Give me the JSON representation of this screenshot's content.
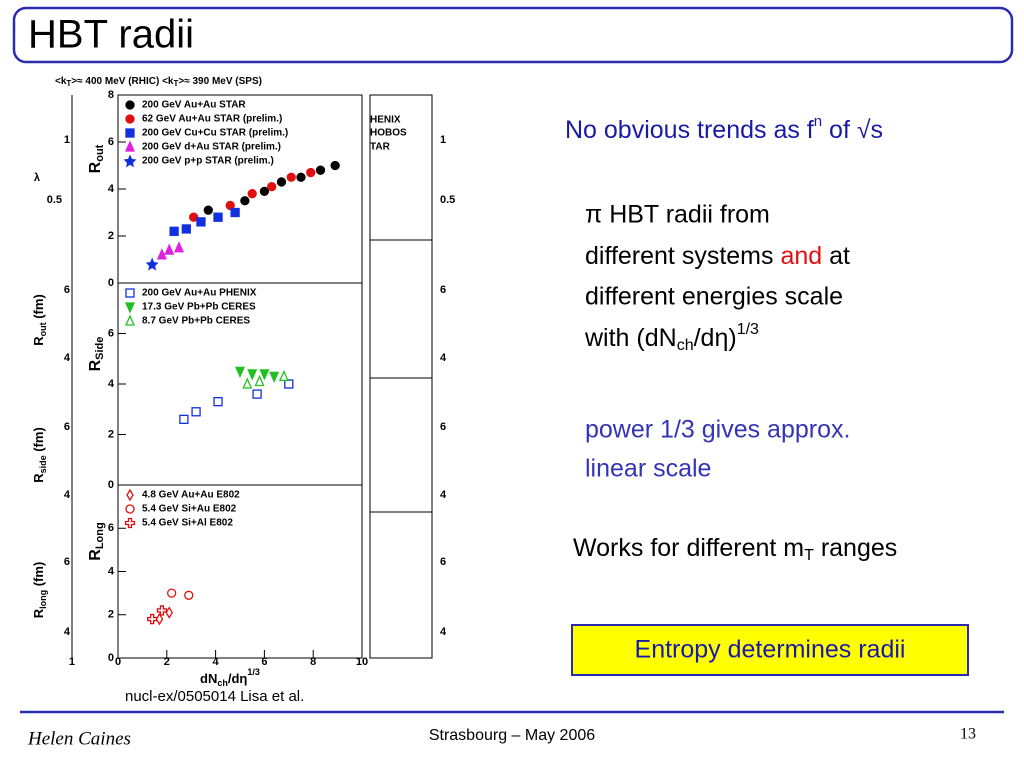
{
  "header": {
    "title": "HBT radii"
  },
  "figure_caption": {
    "a": "<k",
    "a_sub": "T",
    "b": ">≈ 400 MeV (RHIC)     <k",
    "b_sub": "T",
    "c": ">≈ 390 MeV (SPS)"
  },
  "x_axis_label": {
    "a": "dN",
    "sub": "ch",
    "b": "/dη",
    "sup": "1/3"
  },
  "reference": "nucl-ex/0505014 Lisa et al.",
  "left_axis_texts": [
    "1",
    "λ",
    "0.5",
    "6",
    "R",
    "4",
    "6",
    "R",
    "4",
    "6",
    "R",
    "4",
    "1"
  ],
  "left_axis_subs": [
    "out",
    "side",
    "long"
  ],
  "left_axis_units": " (fm)",
  "right_axis_texts": [
    "HENIX",
    "HOBOS",
    "TAR",
    "1",
    "0.5",
    "6",
    "4",
    "6",
    "4",
    "6",
    "4"
  ],
  "chart_data": [
    {
      "type": "scatter",
      "ylabel": "R",
      "ylabel_sub": "out",
      "xlim": [
        0,
        10
      ],
      "ylim": [
        0,
        8
      ],
      "yticks": [
        0,
        2,
        4,
        6,
        8
      ],
      "series": [
        {
          "name": "200 GeV Au+Au STAR",
          "color": "#000000",
          "marker": "circle",
          "filled": true,
          "x": [
            3.7,
            5.2,
            6.0,
            6.7,
            7.5,
            8.3,
            8.9
          ],
          "values": [
            3.1,
            3.5,
            3.9,
            4.3,
            4.5,
            4.8,
            5.0
          ]
        },
        {
          "name": " 62 GeV Au+Au STAR (prelim.)",
          "color": "#e01010",
          "marker": "circle",
          "filled": true,
          "x": [
            3.1,
            4.6,
            5.5,
            6.3,
            7.1,
            7.9
          ],
          "values": [
            2.8,
            3.3,
            3.8,
            4.1,
            4.5,
            4.7
          ]
        },
        {
          "name": "200 GeV Cu+Cu STAR (prelim.)",
          "color": "#1030e0",
          "marker": "square",
          "filled": true,
          "x": [
            2.3,
            2.8,
            3.4,
            4.1,
            4.8
          ],
          "values": [
            2.2,
            2.3,
            2.6,
            2.8,
            3.0
          ]
        },
        {
          "name": "200 GeV d+Au STAR (prelim.)",
          "color": "#e020e0",
          "marker": "triangle",
          "filled": true,
          "x": [
            1.8,
            2.1,
            2.5
          ],
          "values": [
            1.2,
            1.4,
            1.5
          ]
        },
        {
          "name": "200 GeV p+p STAR (prelim.)",
          "color": "#1030e0",
          "marker": "star",
          "filled": true,
          "x": [
            1.4
          ],
          "values": [
            0.8
          ]
        }
      ]
    },
    {
      "type": "scatter",
      "ylabel": "R",
      "ylabel_sub": "Side",
      "xlim": [
        0,
        10
      ],
      "ylim": [
        0,
        8
      ],
      "yticks": [
        0,
        2,
        4,
        6
      ],
      "series": [
        {
          "name": "200 GeV Au+Au PHENIX",
          "color": "#1030e0",
          "marker": "square",
          "filled": false,
          "x": [
            2.7,
            3.2,
            4.1,
            5.7,
            7.0
          ],
          "values": [
            2.6,
            2.9,
            3.3,
            3.6,
            4.0
          ]
        },
        {
          "name": "17.3 GeV Pb+Pb CERES",
          "color": "#20c020",
          "marker": "triangle-down",
          "filled": true,
          "x": [
            5.0,
            5.5,
            6.0,
            6.4
          ],
          "values": [
            4.5,
            4.4,
            4.4,
            4.3
          ]
        },
        {
          "name": "8.7 GeV Pb+Pb CERES",
          "color": "#20c020",
          "marker": "triangle",
          "filled": false,
          "x": [
            5.3,
            5.8,
            6.8
          ],
          "values": [
            4.0,
            4.1,
            4.3
          ]
        }
      ]
    },
    {
      "type": "scatter",
      "ylabel": "R",
      "ylabel_sub": "Long",
      "xlim": [
        0,
        10
      ],
      "xticks": [
        0,
        2,
        4,
        6,
        8,
        10
      ],
      "ylim": [
        0,
        8
      ],
      "yticks": [
        0,
        2,
        4,
        6
      ],
      "series": [
        {
          "name": "4.8 GeV Au+Au E802",
          "color": "#e01010",
          "marker": "diamond",
          "filled": false,
          "x": [
            1.7,
            2.1
          ],
          "values": [
            1.8,
            2.1
          ]
        },
        {
          "name": "5.4 GeV Si+Au E802",
          "color": "#e01010",
          "marker": "circle",
          "filled": false,
          "x": [
            2.2,
            2.9
          ],
          "values": [
            3.0,
            2.9
          ]
        },
        {
          "name": "5.4 GeV Si+Al E802",
          "color": "#e01010",
          "marker": "cross",
          "filled": false,
          "x": [
            1.4,
            1.8
          ],
          "values": [
            1.8,
            2.2
          ]
        }
      ]
    }
  ],
  "points": {
    "trend": {
      "a": "No obvious trends as f",
      "sup": "n",
      "b": " of √s"
    },
    "scaling": {
      "a": "π HBT radii from",
      "b": "different systems ",
      "red": "and",
      "c": " at",
      "d": "different energies scale",
      "e": "with (dN",
      "sub": "ch",
      "f": "/dη)",
      "sup": "1/3"
    },
    "power": {
      "a": "power 1/3  gives approx.",
      "b": "linear scale"
    },
    "mt": {
      "a": "Works for different m",
      "sub": "T",
      "b": " ranges"
    },
    "box": "Entropy determines radii"
  },
  "footer": {
    "author": "Helen Caines",
    "event": "Strasbourg  –  May 2006",
    "page": "13"
  }
}
